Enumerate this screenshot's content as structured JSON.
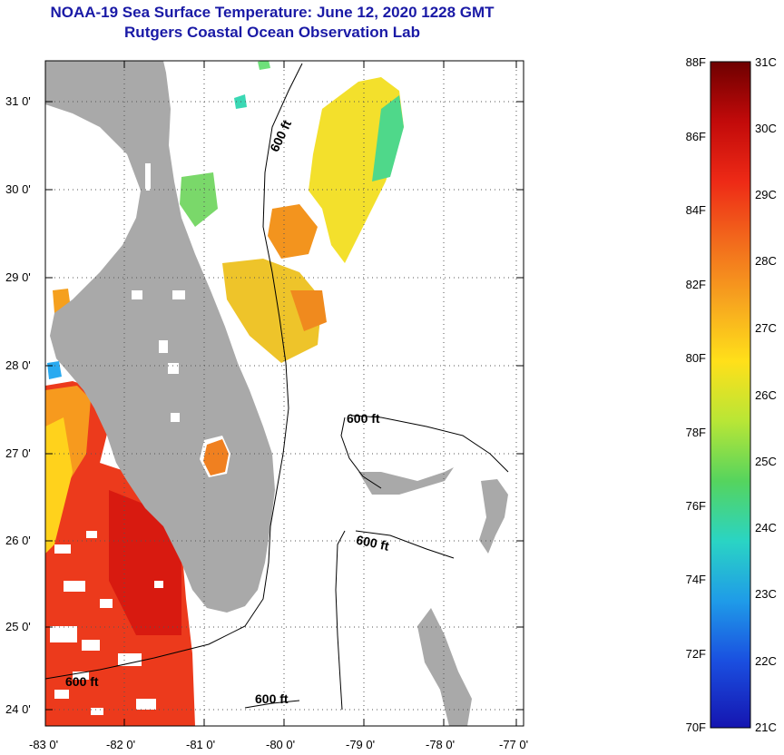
{
  "title": {
    "line1": "NOAA-19 Sea Surface Temperature:  June 12, 2020 1228 GMT",
    "line2": "Rutgers Coastal Ocean Observation Lab"
  },
  "map": {
    "lon_labels": [
      "-83 0'",
      "-82 0'",
      "-81 0'",
      "-80 0'",
      "-79 0'",
      "-78 0'",
      "-77 0'"
    ],
    "lat_labels": [
      "31 0'",
      "30 0'",
      "29 0'",
      "28 0'",
      "27 0'",
      "26 0'",
      "25 0'",
      "24 0'"
    ],
    "isobath_labels": [
      "600 ft",
      "600 ft",
      "600 ft",
      "600 ft",
      "600 ft"
    ],
    "colors": {
      "land": "#a9a9a9",
      "frame": "#000000"
    }
  },
  "colorbar": {
    "f_labels": [
      "88F",
      "86F",
      "84F",
      "82F",
      "80F",
      "78F",
      "76F",
      "74F",
      "72F",
      "70F"
    ],
    "c_labels": [
      "31C",
      "30C",
      "29C",
      "28C",
      "27C",
      "26C",
      "25C",
      "24C",
      "23C",
      "22C",
      "21C"
    ],
    "gradient_stops": [
      "#6e0000",
      "#c20a0a",
      "#ee2a16",
      "#f26a1c",
      "#f7a51f",
      "#ffe01a",
      "#b8e636",
      "#55d45e",
      "#2ad4c4",
      "#1f9be8",
      "#1a4fe0",
      "#1515b0"
    ]
  }
}
